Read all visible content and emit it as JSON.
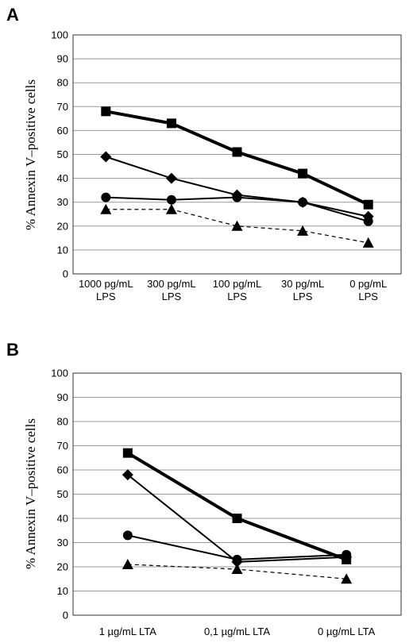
{
  "chart_data": [
    {
      "panel": "A",
      "type": "line",
      "ylabel": "% Annexin V–positive cells",
      "xlabel": "",
      "ylim": [
        0,
        100
      ],
      "yticks": [
        0,
        10,
        20,
        30,
        40,
        50,
        60,
        70,
        80,
        90,
        100
      ],
      "grid": true,
      "categories": [
        [
          "1000 pg/mL",
          "LPS"
        ],
        [
          "300 pg/mL",
          "LPS"
        ],
        [
          "100 pg/mL",
          "LPS"
        ],
        [
          "30 pg/mL",
          "LPS"
        ],
        [
          "0 pg/mL",
          "LPS"
        ]
      ],
      "series": [
        {
          "marker": "square",
          "line": "solid-thick",
          "color": "#000000",
          "values": [
            68,
            63,
            51,
            42,
            29
          ]
        },
        {
          "marker": "diamond",
          "line": "solid",
          "color": "#000000",
          "values": [
            49,
            40,
            33,
            30,
            24
          ]
        },
        {
          "marker": "circle",
          "line": "solid",
          "color": "#000000",
          "values": [
            32,
            31,
            32,
            30,
            22
          ]
        },
        {
          "marker": "triangle",
          "line": "dashed",
          "color": "#000000",
          "values": [
            27,
            27,
            20,
            18,
            13
          ]
        }
      ]
    },
    {
      "panel": "B",
      "type": "line",
      "ylabel": "% Annexin V–positive cells",
      "xlabel": "",
      "ylim": [
        0,
        100
      ],
      "yticks": [
        0,
        10,
        20,
        30,
        40,
        50,
        60,
        70,
        80,
        90,
        100
      ],
      "grid": true,
      "categories": [
        [
          "1 µg/mL LTA"
        ],
        [
          "0,1 µg/mL LTA"
        ],
        [
          "0 µg/mL LTA"
        ]
      ],
      "series": [
        {
          "marker": "square",
          "line": "solid-thick",
          "color": "#000000",
          "values": [
            67,
            40,
            23
          ]
        },
        {
          "marker": "diamond",
          "line": "solid",
          "color": "#000000",
          "values": [
            58,
            22,
            24
          ]
        },
        {
          "marker": "circle",
          "line": "solid",
          "color": "#000000",
          "values": [
            33,
            23,
            25
          ]
        },
        {
          "marker": "triangle",
          "line": "dashed",
          "color": "#000000",
          "values": [
            21,
            19,
            15
          ]
        }
      ]
    }
  ]
}
